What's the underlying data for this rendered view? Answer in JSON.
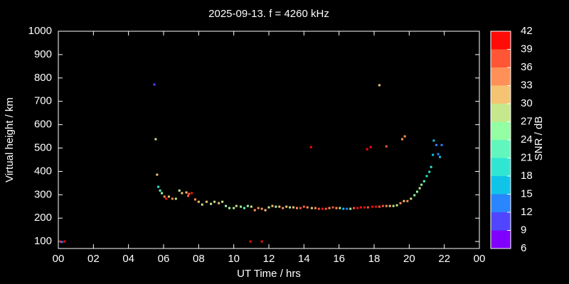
{
  "chart_data": {
    "type": "scatter",
    "title": "2025-09-13. f = 4260 kHz",
    "xlabel": "UT Time / hrs",
    "ylabel": "Virtual height / km",
    "colorbar_label": "SNR / dB",
    "xlim": [
      0,
      24
    ],
    "xticks": [
      {
        "value": 0,
        "label": "00"
      },
      {
        "value": 2,
        "label": "02"
      },
      {
        "value": 4,
        "label": "04"
      },
      {
        "value": 6,
        "label": "06"
      },
      {
        "value": 8,
        "label": "08"
      },
      10,
      12,
      14,
      16,
      18,
      20,
      22,
      {
        "value": 24,
        "label": "00"
      }
    ],
    "ylim": [
      70,
      1000
    ],
    "yticks": [
      100,
      200,
      300,
      400,
      500,
      600,
      700,
      800,
      900,
      1000
    ],
    "clim": [
      6,
      42
    ],
    "cticks": [
      6,
      9,
      12,
      15,
      18,
      21,
      24,
      27,
      30,
      33,
      36,
      39,
      42
    ],
    "colormap": [
      "#8000ff",
      "#5046ff",
      "#2a86ff",
      "#10c4e8",
      "#30e6d2",
      "#62f6be",
      "#94fea2",
      "#c6e88c",
      "#f4c473",
      "#ff9158",
      "#ff5636",
      "#ff0c08"
    ],
    "x": [
      0.1,
      0.2,
      0.35,
      5.47,
      5.55,
      5.63,
      5.7,
      5.8,
      5.9,
      6.05,
      6.15,
      6.3,
      6.5,
      6.7,
      6.9,
      7.05,
      7.3,
      7.45,
      7.6,
      7.4,
      7.8,
      8.0,
      8.2,
      8.45,
      8.7,
      8.9,
      9.15,
      9.35,
      9.55,
      9.75,
      10.0,
      10.15,
      10.4,
      10.6,
      10.8,
      11.0,
      11.2,
      11.4,
      11.6,
      11.8,
      12.0,
      12.2,
      12.4,
      12.6,
      12.8,
      13.0,
      13.2,
      13.4,
      13.6,
      13.8,
      14.0,
      14.2,
      14.45,
      14.65,
      14.85,
      15.05,
      15.25,
      15.45,
      15.65,
      15.85,
      16.05,
      16.25,
      16.45,
      16.65,
      16.85,
      17.05,
      17.25,
      17.45,
      17.65,
      17.9,
      18.1,
      18.3,
      18.5,
      18.7,
      18.9,
      19.1,
      19.3,
      19.5,
      19.7,
      19.9,
      20.1,
      20.3,
      20.45,
      20.6,
      20.7,
      20.85,
      21.0,
      21.15,
      21.25,
      21.35,
      21.4,
      21.55,
      21.65,
      21.75,
      21.85,
      10.95,
      11.6,
      14.4,
      17.6,
      17.8,
      18.3,
      18.7,
      19.6,
      19.75
    ],
    "y": [
      100,
      98,
      100,
      772,
      538,
      386,
      334,
      318,
      307,
      292,
      283,
      292,
      283,
      283,
      318,
      307,
      310,
      304,
      307,
      295,
      280,
      270,
      258,
      270,
      261,
      270,
      264,
      270,
      252,
      243,
      243,
      252,
      249,
      243,
      252,
      249,
      234,
      243,
      240,
      234,
      246,
      252,
      249,
      249,
      243,
      249,
      246,
      246,
      243,
      243,
      249,
      246,
      243,
      243,
      240,
      240,
      240,
      243,
      246,
      243,
      243,
      240,
      240,
      240,
      243,
      243,
      246,
      246,
      246,
      249,
      249,
      249,
      252,
      252,
      252,
      252,
      255,
      264,
      273,
      273,
      283,
      298,
      313,
      328,
      343,
      358,
      380,
      398,
      419,
      471,
      532,
      513,
      474,
      462,
      513,
      100,
      100,
      504,
      495,
      504,
      769,
      507,
      538,
      550
    ],
    "snr": [
      39,
      12,
      39,
      9,
      27,
      30,
      18,
      21,
      24,
      33,
      39,
      30,
      33,
      27,
      27,
      30,
      30,
      36,
      39,
      36,
      33,
      30,
      27,
      30,
      27,
      27,
      30,
      27,
      24,
      24,
      27,
      27,
      24,
      21,
      24,
      27,
      33,
      33,
      33,
      30,
      27,
      30,
      27,
      30,
      33,
      30,
      27,
      30,
      33,
      36,
      36,
      33,
      30,
      33,
      36,
      39,
      36,
      33,
      36,
      33,
      27,
      15,
      12,
      24,
      36,
      39,
      39,
      42,
      36,
      39,
      39,
      36,
      36,
      33,
      30,
      27,
      27,
      33,
      30,
      33,
      27,
      24,
      24,
      27,
      24,
      21,
      18,
      18,
      18,
      15,
      15,
      12,
      12,
      15,
      12,
      39,
      39,
      39,
      39,
      42,
      30,
      36,
      33,
      33
    ]
  }
}
